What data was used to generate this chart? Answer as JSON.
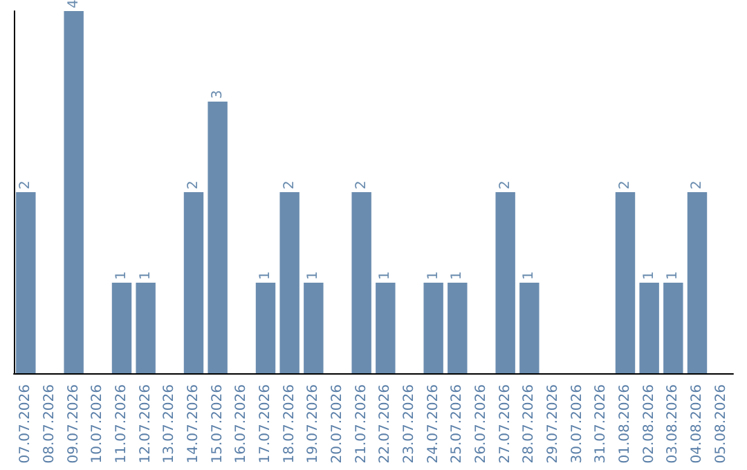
{
  "chart_data": {
    "type": "bar",
    "categories": [
      "07.07.2026",
      "08.07.2026",
      "09.07.2026",
      "10.07.2026",
      "11.07.2026",
      "12.07.2026",
      "13.07.2026",
      "14.07.2026",
      "15.07.2026",
      "16.07.2026",
      "17.07.2026",
      "18.07.2026",
      "19.07.2026",
      "20.07.2026",
      "21.07.2026",
      "22.07.2026",
      "23.07.2026",
      "24.07.2026",
      "25.07.2026",
      "26.07.2026",
      "27.07.2026",
      "28.07.2026",
      "29.07.2026",
      "30.07.2026",
      "31.07.2026",
      "01.08.2026",
      "02.08.2026",
      "03.08.2026",
      "04.08.2026",
      "05.08.2026"
    ],
    "values": [
      2,
      0,
      4,
      0,
      1,
      1,
      0,
      2,
      3,
      0,
      1,
      2,
      1,
      0,
      2,
      1,
      0,
      1,
      1,
      0,
      2,
      1,
      0,
      0,
      0,
      2,
      1,
      1,
      2,
      0
    ],
    "value_labels": [
      "2",
      null,
      "4",
      null,
      "1",
      "1",
      null,
      "2",
      "3",
      null,
      "1",
      "2",
      "1",
      null,
      "2",
      "1",
      null,
      "1",
      "1",
      null,
      "2",
      "1",
      null,
      null,
      null,
      "2",
      "1",
      "1",
      "2",
      null
    ],
    "color": "#6a8caf",
    "grid": false,
    "tick_labels": "x"
  }
}
